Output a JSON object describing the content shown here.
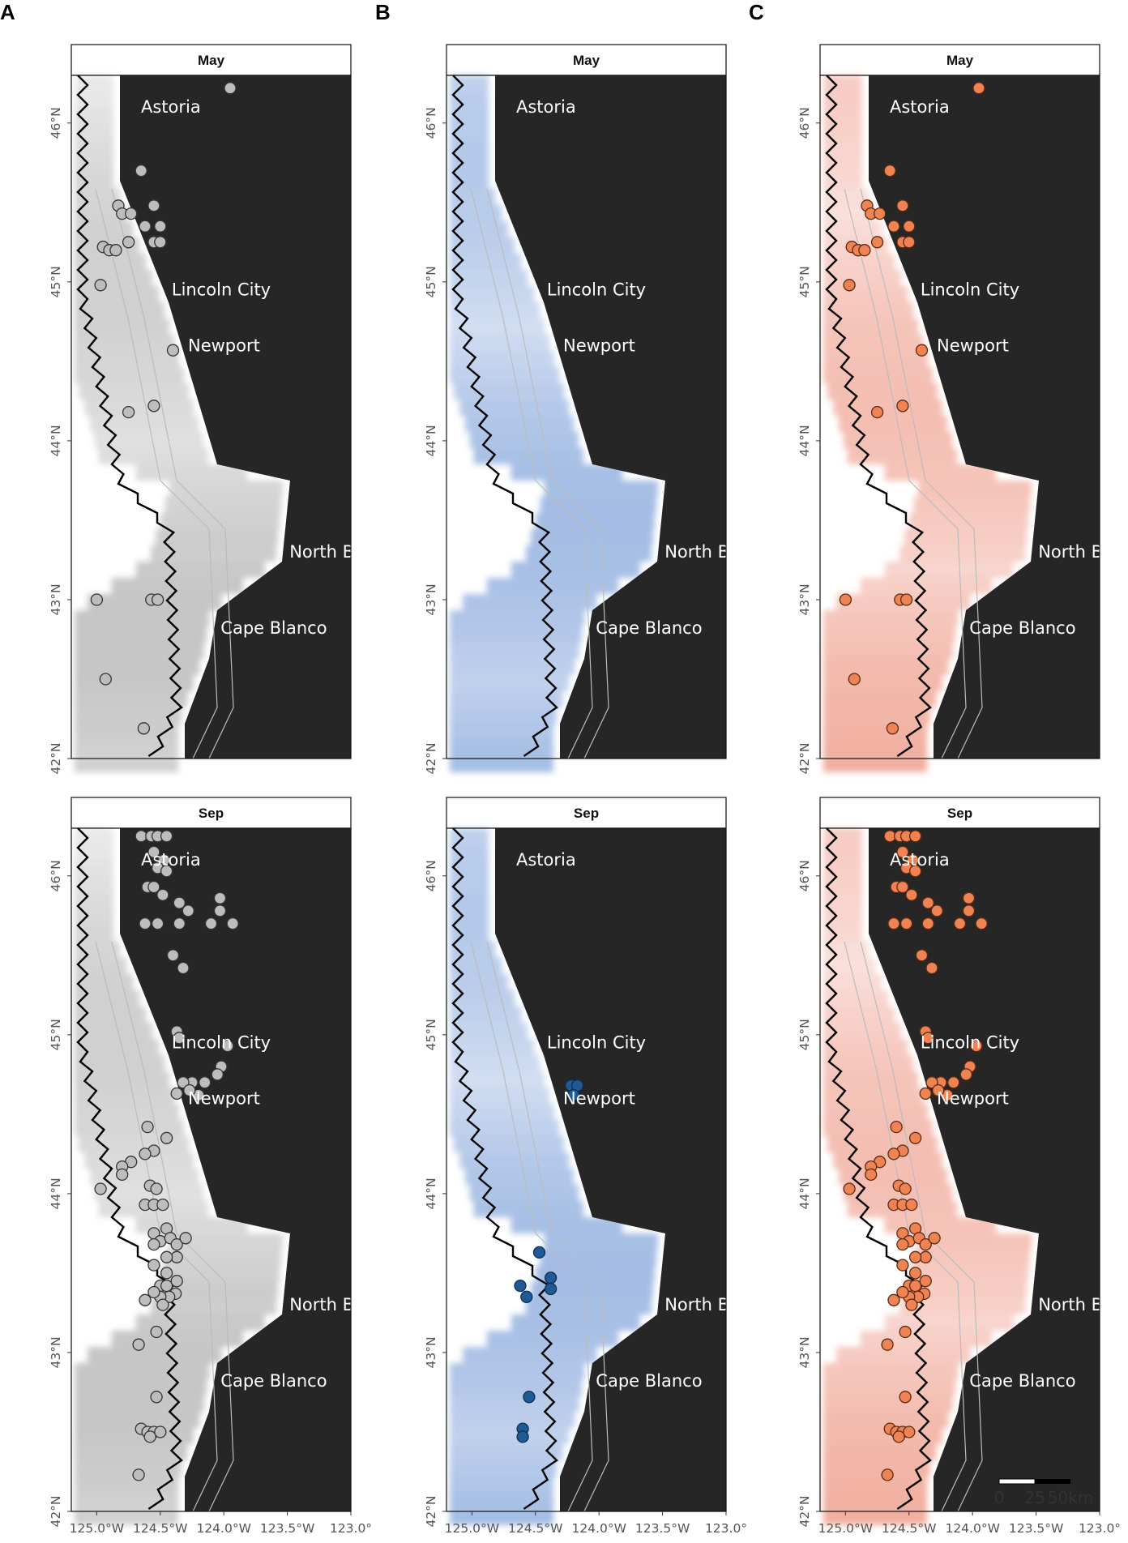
{
  "panels": [
    {
      "label": "A",
      "palette": "gray"
    },
    {
      "label": "B",
      "palette": "blue"
    },
    {
      "label": "C",
      "palette": "orange"
    }
  ],
  "months": [
    "May",
    "Sep"
  ],
  "cities": [
    {
      "name": "Astoria",
      "lat": 46.1
    },
    {
      "name": "Lincoln City",
      "lat": 44.95
    },
    {
      "name": "Newport",
      "lat": 44.6
    },
    {
      "name": "North Bend",
      "lat": 43.3
    },
    {
      "name": "Cape Blanco",
      "lat": 42.82
    }
  ],
  "axes": {
    "lat_ticks": [
      "46°N",
      "45°N",
      "44°N",
      "43°N",
      "42°N"
    ],
    "lon_ticks": [
      "125.0°W",
      "124.5°W",
      "124.0°W",
      "123.5°W",
      "123.0°"
    ],
    "lon_range": [
      -125.2,
      -123.0
    ],
    "lat_range": [
      42.0,
      46.3
    ]
  },
  "scale_bar": {
    "labels": [
      "0",
      "25",
      "50km"
    ]
  },
  "colors": {
    "land": "#262626",
    "gray_point": "#bdbdbd",
    "blue_point": "#1f5a94",
    "orange_point": "#ef8354",
    "contour": "#bcbcbd"
  },
  "map_data": {
    "points": {
      "A_May": [
        [
          -123.95,
          46.22
        ],
        [
          -124.65,
          45.7
        ],
        [
          -124.83,
          45.48
        ],
        [
          -124.8,
          45.43
        ],
        [
          -124.73,
          45.43
        ],
        [
          -124.55,
          45.48
        ],
        [
          -124.62,
          45.35
        ],
        [
          -124.5,
          45.35
        ],
        [
          -124.55,
          45.25
        ],
        [
          -124.5,
          45.25
        ],
        [
          -124.75,
          45.25
        ],
        [
          -124.95,
          45.22
        ],
        [
          -124.9,
          45.2
        ],
        [
          -124.85,
          45.2
        ],
        [
          -124.97,
          44.98
        ],
        [
          -124.4,
          44.57
        ],
        [
          -124.55,
          44.22
        ],
        [
          -124.75,
          44.18
        ],
        [
          -125.0,
          43.0
        ],
        [
          -124.57,
          43.0
        ],
        [
          -124.52,
          43.0
        ],
        [
          -124.93,
          42.5
        ],
        [
          -124.63,
          42.19
        ]
      ],
      "A_Sep": [
        [
          -124.65,
          46.25
        ],
        [
          -124.57,
          46.25
        ],
        [
          -124.52,
          46.25
        ],
        [
          -124.45,
          46.25
        ],
        [
          -124.55,
          46.15
        ],
        [
          -124.47,
          46.1
        ],
        [
          -124.52,
          46.05
        ],
        [
          -124.45,
          46.03
        ],
        [
          -124.6,
          45.93
        ],
        [
          -124.55,
          45.93
        ],
        [
          -124.48,
          45.88
        ],
        [
          -124.35,
          45.83
        ],
        [
          -124.03,
          45.86
        ],
        [
          -124.28,
          45.78
        ],
        [
          -124.03,
          45.78
        ],
        [
          -124.52,
          45.7
        ],
        [
          -124.62,
          45.7
        ],
        [
          -124.1,
          45.7
        ],
        [
          -124.35,
          45.7
        ],
        [
          -123.93,
          45.7
        ],
        [
          -124.4,
          45.5
        ],
        [
          -124.32,
          45.42
        ],
        [
          -124.37,
          45.02
        ],
        [
          -124.35,
          44.98
        ],
        [
          -123.97,
          44.93
        ],
        [
          -124.02,
          44.8
        ],
        [
          -124.05,
          44.75
        ],
        [
          -124.15,
          44.7
        ],
        [
          -124.25,
          44.7
        ],
        [
          -124.32,
          44.7
        ],
        [
          -124.37,
          44.63
        ],
        [
          -124.2,
          44.62
        ],
        [
          -124.27,
          44.65
        ],
        [
          -124.6,
          44.42
        ],
        [
          -124.45,
          44.35
        ],
        [
          -124.55,
          44.27
        ],
        [
          -124.62,
          44.25
        ],
        [
          -124.73,
          44.2
        ],
        [
          -124.8,
          44.17
        ],
        [
          -124.8,
          44.12
        ],
        [
          -124.97,
          44.03
        ],
        [
          -124.58,
          44.05
        ],
        [
          -124.53,
          44.03
        ],
        [
          -124.62,
          43.93
        ],
        [
          -124.55,
          43.93
        ],
        [
          -124.48,
          43.93
        ],
        [
          -124.45,
          43.78
        ],
        [
          -124.55,
          43.75
        ],
        [
          -124.5,
          43.7
        ],
        [
          -124.55,
          43.68
        ],
        [
          -124.42,
          43.72
        ],
        [
          -124.37,
          43.68
        ],
        [
          -124.3,
          43.72
        ],
        [
          -124.37,
          43.6
        ],
        [
          -124.45,
          43.6
        ],
        [
          -124.55,
          43.55
        ],
        [
          -124.45,
          43.5
        ],
        [
          -124.5,
          43.42
        ],
        [
          -124.45,
          43.42
        ],
        [
          -124.38,
          43.37
        ],
        [
          -124.37,
          43.45
        ],
        [
          -124.43,
          43.35
        ],
        [
          -124.5,
          43.35
        ],
        [
          -124.55,
          43.38
        ],
        [
          -124.48,
          43.3
        ],
        [
          -124.62,
          43.33
        ],
        [
          -124.53,
          43.13
        ],
        [
          -124.67,
          43.05
        ],
        [
          -124.53,
          42.72
        ],
        [
          -124.65,
          42.52
        ],
        [
          -124.6,
          42.5
        ],
        [
          -124.55,
          42.5
        ],
        [
          -124.5,
          42.5
        ],
        [
          -124.58,
          42.47
        ],
        [
          -124.67,
          42.23
        ]
      ],
      "B_Sep": [
        [
          -124.22,
          44.68
        ],
        [
          -124.17,
          44.68
        ],
        [
          -124.2,
          44.62
        ],
        [
          -124.47,
          43.63
        ],
        [
          -124.62,
          43.42
        ],
        [
          -124.57,
          43.35
        ],
        [
          -124.38,
          43.47
        ],
        [
          -124.38,
          43.4
        ],
        [
          -124.55,
          42.72
        ],
        [
          -124.6,
          42.52
        ],
        [
          -124.6,
          42.47
        ]
      ],
      "C_May": [
        [
          -123.95,
          46.22
        ],
        [
          -124.65,
          45.7
        ],
        [
          -124.83,
          45.48
        ],
        [
          -124.8,
          45.43
        ],
        [
          -124.73,
          45.43
        ],
        [
          -124.55,
          45.48
        ],
        [
          -124.62,
          45.35
        ],
        [
          -124.5,
          45.35
        ],
        [
          -124.55,
          45.25
        ],
        [
          -124.5,
          45.25
        ],
        [
          -124.75,
          45.25
        ],
        [
          -124.95,
          45.22
        ],
        [
          -124.9,
          45.2
        ],
        [
          -124.85,
          45.2
        ],
        [
          -124.97,
          44.98
        ],
        [
          -124.4,
          44.57
        ],
        [
          -124.55,
          44.22
        ],
        [
          -124.75,
          44.18
        ],
        [
          -125.0,
          43.0
        ],
        [
          -124.57,
          43.0
        ],
        [
          -124.52,
          43.0
        ],
        [
          -124.93,
          42.5
        ],
        [
          -124.63,
          42.19
        ]
      ],
      "C_Sep": [
        [
          -124.65,
          46.25
        ],
        [
          -124.57,
          46.25
        ],
        [
          -124.52,
          46.25
        ],
        [
          -124.45,
          46.25
        ],
        [
          -124.55,
          46.15
        ],
        [
          -124.47,
          46.1
        ],
        [
          -124.52,
          46.05
        ],
        [
          -124.45,
          46.03
        ],
        [
          -124.6,
          45.93
        ],
        [
          -124.55,
          45.93
        ],
        [
          -124.48,
          45.88
        ],
        [
          -124.35,
          45.83
        ],
        [
          -124.03,
          45.86
        ],
        [
          -124.28,
          45.78
        ],
        [
          -124.03,
          45.78
        ],
        [
          -124.52,
          45.7
        ],
        [
          -124.62,
          45.7
        ],
        [
          -124.1,
          45.7
        ],
        [
          -124.35,
          45.7
        ],
        [
          -123.93,
          45.7
        ],
        [
          -124.4,
          45.5
        ],
        [
          -124.32,
          45.42
        ],
        [
          -124.37,
          45.02
        ],
        [
          -124.35,
          44.98
        ],
        [
          -123.97,
          44.93
        ],
        [
          -124.02,
          44.8
        ],
        [
          -124.05,
          44.75
        ],
        [
          -124.15,
          44.7
        ],
        [
          -124.25,
          44.7
        ],
        [
          -124.32,
          44.7
        ],
        [
          -124.37,
          44.63
        ],
        [
          -124.2,
          44.62
        ],
        [
          -124.27,
          44.65
        ],
        [
          -124.6,
          44.42
        ],
        [
          -124.45,
          44.35
        ],
        [
          -124.55,
          44.27
        ],
        [
          -124.62,
          44.25
        ],
        [
          -124.73,
          44.2
        ],
        [
          -124.8,
          44.17
        ],
        [
          -124.8,
          44.12
        ],
        [
          -124.97,
          44.03
        ],
        [
          -124.58,
          44.05
        ],
        [
          -124.53,
          44.03
        ],
        [
          -124.62,
          43.93
        ],
        [
          -124.55,
          43.93
        ],
        [
          -124.48,
          43.93
        ],
        [
          -124.45,
          43.78
        ],
        [
          -124.55,
          43.75
        ],
        [
          -124.5,
          43.7
        ],
        [
          -124.55,
          43.68
        ],
        [
          -124.42,
          43.72
        ],
        [
          -124.37,
          43.68
        ],
        [
          -124.3,
          43.72
        ],
        [
          -124.37,
          43.6
        ],
        [
          -124.45,
          43.6
        ],
        [
          -124.55,
          43.55
        ],
        [
          -124.45,
          43.5
        ],
        [
          -124.5,
          43.42
        ],
        [
          -124.45,
          43.42
        ],
        [
          -124.38,
          43.37
        ],
        [
          -124.37,
          43.45
        ],
        [
          -124.43,
          43.35
        ],
        [
          -124.5,
          43.35
        ],
        [
          -124.55,
          43.38
        ],
        [
          -124.48,
          43.3
        ],
        [
          -124.62,
          43.33
        ],
        [
          -124.53,
          43.13
        ],
        [
          -124.67,
          43.05
        ],
        [
          -124.53,
          42.72
        ],
        [
          -124.65,
          42.52
        ],
        [
          -124.6,
          42.5
        ],
        [
          -124.55,
          42.5
        ],
        [
          -124.5,
          42.5
        ],
        [
          -124.58,
          42.47
        ],
        [
          -124.67,
          42.23
        ]
      ]
    }
  }
}
